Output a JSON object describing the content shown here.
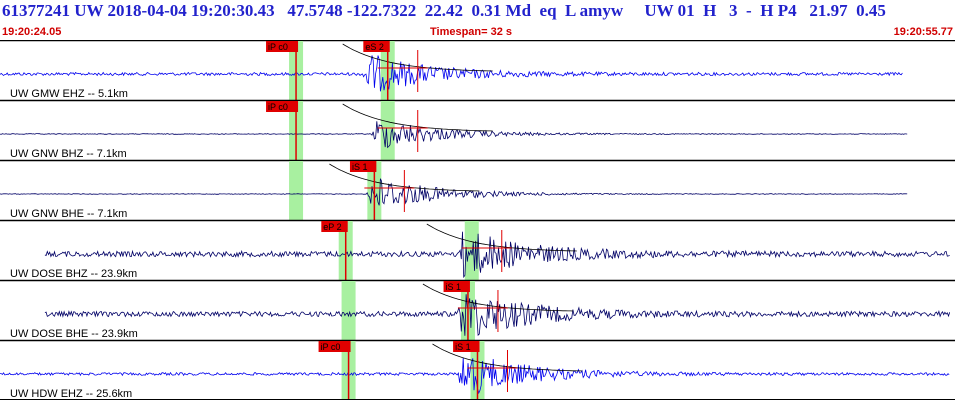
{
  "header": {
    "title": "61377241 UW 2018-04-04 19:20:30.43   47.5748 -122.7322  22.42  0.31 Md  eq  L amyw     UW 01  H   3  -  H P4   21.97  0.45",
    "time_start": "19:20:24.05",
    "timespan": "Timespan=  32 s",
    "time_end": "19:20:55.77"
  },
  "colors": {
    "trace_blue": "#0000ee",
    "trace_navy": "#000066",
    "pick_red": "#e00000",
    "pick_band": "#a8f0a0",
    "header_red": "#d00000",
    "title_blue": "#2222cc"
  },
  "channels": [
    {
      "label": "UW GMW EHZ -- 5.1km",
      "color": "blue",
      "trace_start": 0.0,
      "trace_end": 0.946,
      "arrival": 0.4,
      "noise": 0.5,
      "amplitude": 1.6,
      "picks": [
        {
          "label": "iP c0",
          "t": 0.31,
          "color": "red",
          "band": true
        },
        {
          "label": "eS 2",
          "t": 0.406,
          "color": "red",
          "band": true
        }
      ]
    },
    {
      "label": "UW GNW BHZ -- 7.1km",
      "color": "navy",
      "trace_start": 0.0,
      "trace_end": 0.95,
      "arrival": 0.41,
      "noise": 0.12,
      "amplitude": 1.3,
      "picks": [
        {
          "label": "iP c0",
          "t": 0.31,
          "color": "red",
          "band": true
        },
        {
          "label": "",
          "t": 0.406,
          "color": "none",
          "band": true
        }
      ]
    },
    {
      "label": "UW GNW BHE -- 7.1km",
      "color": "navy",
      "trace_start": 0.0,
      "trace_end": 0.95,
      "arrival": 0.405,
      "noise": 0.1,
      "amplitude": 1.5,
      "picks": [
        {
          "label": "iS 1",
          "t": 0.392,
          "color": "red",
          "band": true
        },
        {
          "label": "",
          "t": 0.31,
          "color": "none",
          "band": true
        }
      ]
    },
    {
      "label": "UW DOSE BHZ -- 23.9km",
      "color": "navy",
      "trace_start": 0.047,
      "trace_end": 0.995,
      "arrival": 0.5,
      "noise": 0.9,
      "amplitude": 1.9,
      "picks": [
        {
          "label": "eP 2",
          "t": 0.362,
          "color": "red",
          "band": true
        },
        {
          "label": "",
          "t": 0.494,
          "color": "none",
          "band": true
        }
      ]
    },
    {
      "label": "UW DOSE BHE -- 23.9km",
      "color": "navy",
      "trace_start": 0.047,
      "trace_end": 0.995,
      "arrival": 0.5,
      "noise": 0.85,
      "amplitude": 2.0,
      "picks": [
        {
          "label": "iS 1",
          "t": 0.49,
          "color": "red",
          "band": true
        },
        {
          "label": "",
          "t": 0.365,
          "color": "none",
          "band": true
        }
      ]
    },
    {
      "label": "UW HDW EHZ -- 25.6km",
      "color": "blue",
      "trace_start": 0.0,
      "trace_end": 0.995,
      "arrival": 0.5,
      "noise": 0.45,
      "amplitude": 1.8,
      "picks": [
        {
          "label": "iP c0",
          "t": 0.365,
          "color": "red",
          "band": true
        },
        {
          "label": "iS 1",
          "t": 0.5,
          "color": "red",
          "band": true
        }
      ]
    }
  ]
}
